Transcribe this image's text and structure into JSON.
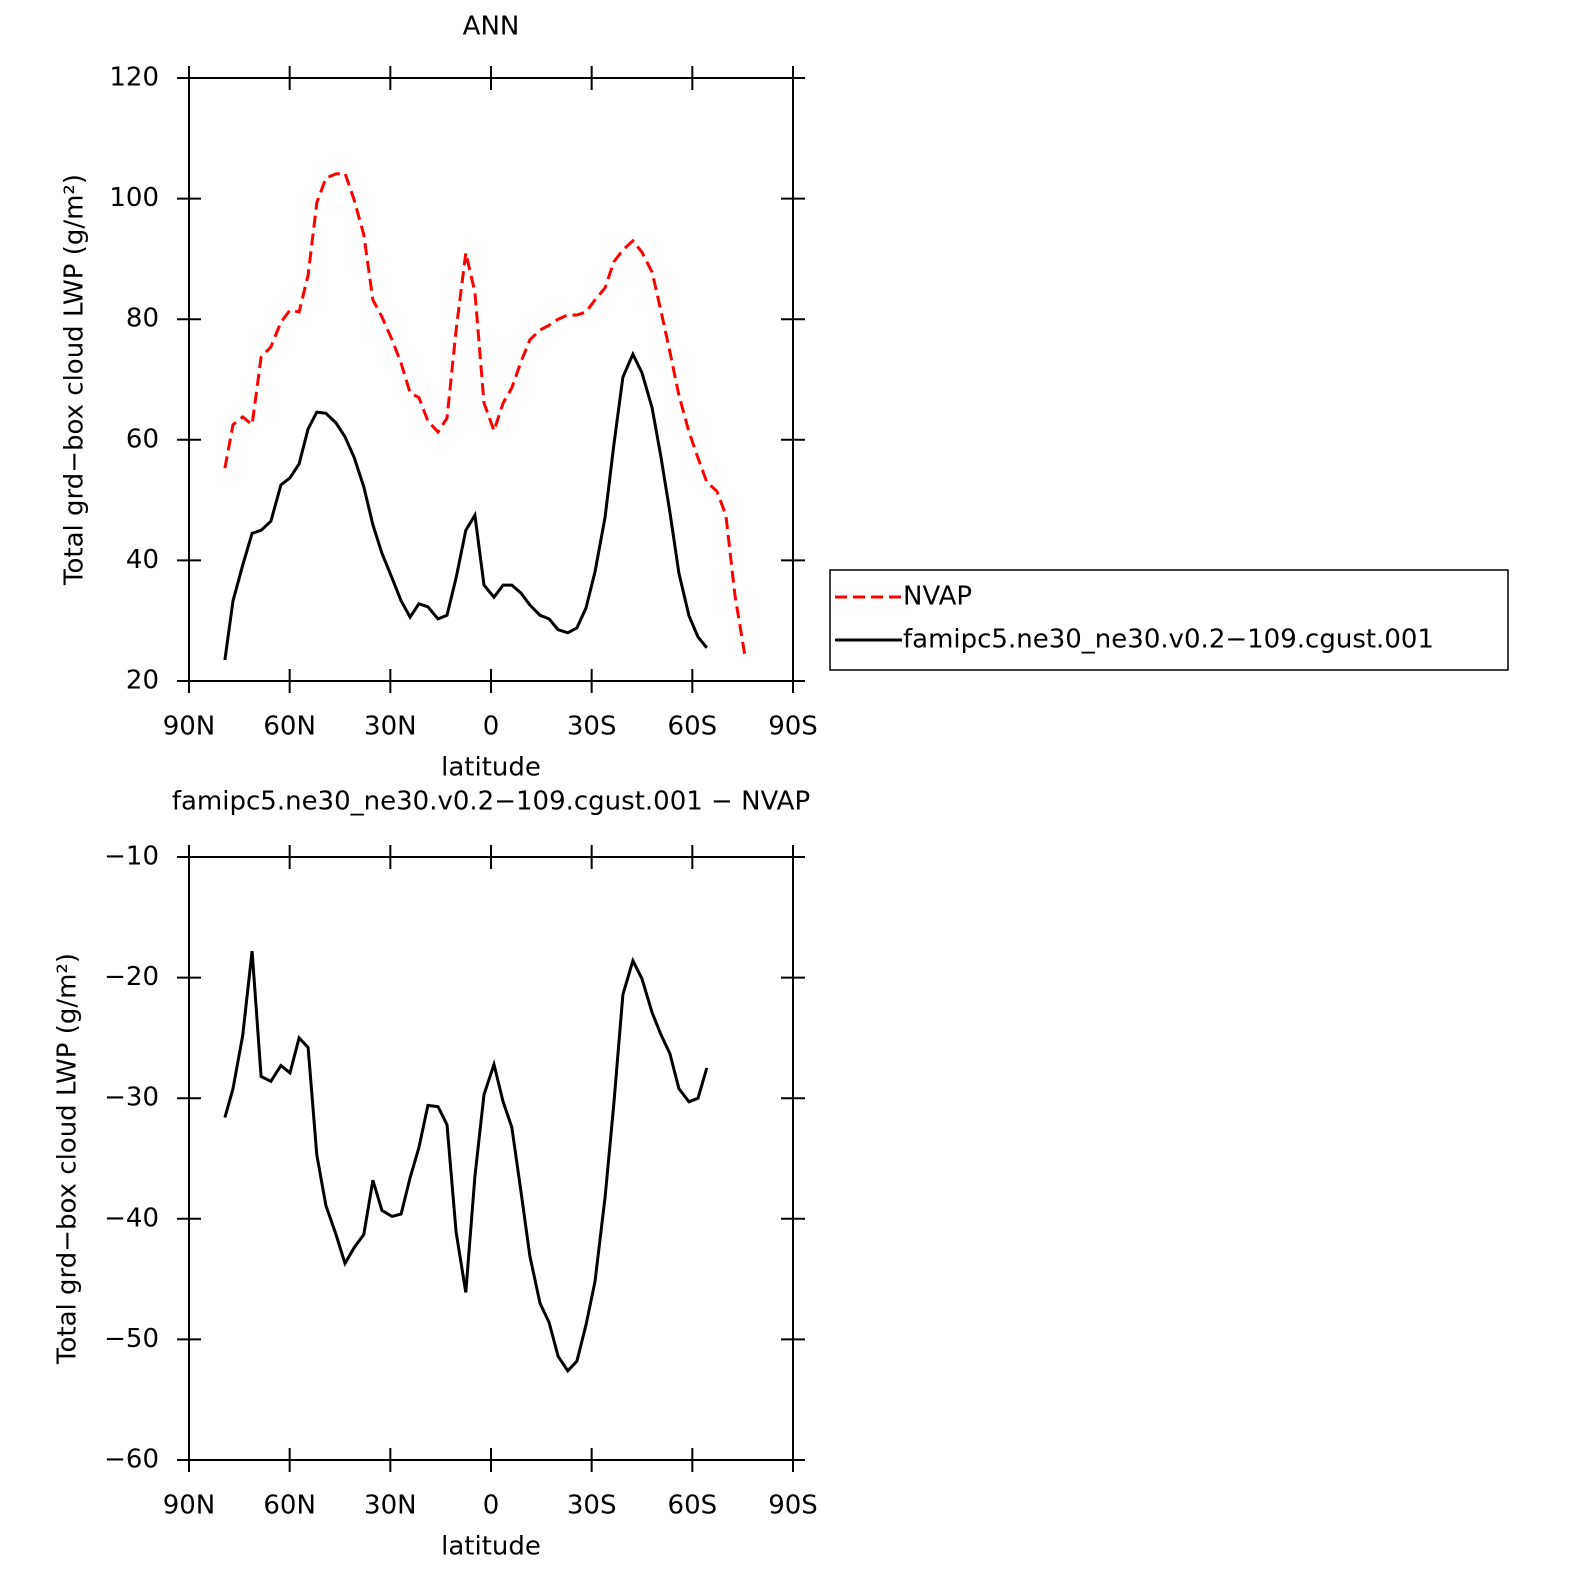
{
  "chart_data": [
    {
      "type": "line",
      "title": "ANN",
      "xlabel": "latitude",
      "ylabel": "Total grd−box cloud LWP (g/m²)",
      "xlim": [
        90,
        -90
      ],
      "xticks": [
        {
          "value": 90,
          "label": "90N"
        },
        {
          "value": 60,
          "label": "60N"
        },
        {
          "value": 30,
          "label": "30N"
        },
        0,
        {
          "value": -30,
          "label": "30S"
        },
        {
          "value": -60,
          "label": "60S"
        },
        {
          "value": -90,
          "label": "90S"
        }
      ],
      "ylim": [
        20,
        120
      ],
      "yticks": [
        20,
        40,
        60,
        80,
        100,
        120
      ],
      "x": [
        79.3,
        76.9,
        74,
        71.2,
        68.5,
        65.6,
        62.6,
        59.9,
        57.2,
        54.5,
        51.9,
        49.2,
        46.2,
        43.5,
        40.8,
        37.9,
        35.2,
        32.5,
        29.5,
        26.8,
        24.1,
        21.5,
        18.8,
        15.8,
        13.1,
        10.4,
        7.5,
        4.8,
        2.1,
        -0.9,
        -3.6,
        -6.2,
        -8.9,
        -11.6,
        -14.6,
        -17.3,
        -20,
        -22.9,
        -25.6,
        -28.3,
        -31,
        -34,
        -36.6,
        -39.3,
        -42.3,
        -45,
        -48,
        -50.6,
        -53.3,
        -56,
        -59,
        -61.7,
        -64.3,
        -67.3,
        -70,
        -72.7,
        -75.7
      ],
      "legend": "right",
      "series": [
        {
          "name": "NVAP",
          "color": "#ff0000",
          "dash": true,
          "values": [
            55.3,
            62.5,
            63.8,
            62.5,
            73.7,
            75.4,
            79.5,
            81.5,
            81.2,
            87.3,
            99.3,
            103.4,
            104.1,
            104.2,
            99.8,
            94,
            83.2,
            80.4,
            76.6,
            72.7,
            67.8,
            67,
            63.1,
            61.3,
            63.6,
            78.2,
            91,
            84.5,
            66.1,
            61.5,
            66.1,
            68.6,
            72.9,
            76.6,
            78.2,
            79,
            80,
            80.7,
            80.7,
            81.2,
            83.2,
            85.2,
            89.5,
            91.5,
            93,
            91.1,
            87.8,
            81.5,
            74.6,
            67.4,
            61.3,
            57,
            53,
            51.5,
            47.5,
            34.3,
            24.1
          ]
        },
        {
          "name": "famipc5.ne30_ne30.v0.2−109.cgust.001",
          "color": "#000000",
          "dash": false,
          "values": [
            23.5,
            33.3,
            39.2,
            44.5,
            45,
            46.5,
            52.5,
            53.7,
            56,
            61.8,
            64.6,
            64.4,
            62.8,
            60.5,
            57.1,
            52.2,
            45.9,
            41.2,
            37.1,
            33.3,
            30.6,
            32.8,
            32.3,
            30.3,
            30.9,
            37.1,
            45,
            47.5,
            35.9,
            33.9,
            35.9,
            35.9,
            34.6,
            32.6,
            30.9,
            30.3,
            28.5,
            28,
            28.8,
            32.1,
            38.1,
            47.2,
            59.1,
            70.4,
            74.2,
            71.1,
            65.3,
            57.3,
            48,
            37.9,
            30.8,
            27.3,
            25.5,
            null,
            null,
            null,
            null
          ]
        }
      ]
    },
    {
      "type": "line",
      "title": "famipc5.ne30_ne30.v0.2−109.cgust.001  −  NVAP",
      "xlabel": "latitude",
      "ylabel": "Total grd−box cloud LWP (g/m²)",
      "xlim": [
        90,
        -90
      ],
      "xticks": [
        {
          "value": 90,
          "label": "90N"
        },
        {
          "value": 60,
          "label": "60N"
        },
        {
          "value": 30,
          "label": "30N"
        },
        0,
        {
          "value": -30,
          "label": "30S"
        },
        {
          "value": -60,
          "label": "60S"
        },
        {
          "value": -90,
          "label": "90S"
        }
      ],
      "ylim": [
        -60,
        -10
      ],
      "yticks": [
        {
          "value": -60,
          "label": "−60"
        },
        {
          "value": -50,
          "label": "−50"
        },
        {
          "value": -40,
          "label": "−40"
        },
        {
          "value": -30,
          "label": "−30"
        },
        {
          "value": -20,
          "label": "−20"
        },
        {
          "value": -10,
          "label": "−10"
        }
      ],
      "x": [
        79.3,
        76.9,
        74,
        71.2,
        68.5,
        65.6,
        62.6,
        59.9,
        57.2,
        54.5,
        51.9,
        49.2,
        46.2,
        43.5,
        40.8,
        37.9,
        35.2,
        32.5,
        29.5,
        26.8,
        24.1,
        21.5,
        18.8,
        15.8,
        13.1,
        10.4,
        7.5,
        4.8,
        2.1,
        -0.9,
        -3.6,
        -6.2,
        -8.9,
        -11.6,
        -14.6,
        -17.3,
        -20,
        -22.9,
        -25.6,
        -28.3,
        -31,
        -34,
        -36.6,
        -39.3,
        -42.3,
        -45,
        -48,
        -50.6,
        -53.3,
        -56,
        -59,
        -61.7,
        -64.3
      ],
      "series": [
        {
          "color": "#000000",
          "dash": false,
          "values": [
            -31.6,
            -29.2,
            -24.8,
            -17.8,
            -28.2,
            -28.6,
            -27.3,
            -27.9,
            -25,
            -25.8,
            -34.7,
            -38.9,
            -41.3,
            -43.7,
            -42.4,
            -41.3,
            -36.8,
            -39.3,
            -39.8,
            -39.6,
            -36.6,
            -34.1,
            -30.6,
            -30.7,
            -32.2,
            -41.1,
            -46.1,
            -36.5,
            -29.7,
            -27.2,
            -30.3,
            -32.4,
            -37.7,
            -43.1,
            -47,
            -48.6,
            -51.4,
            -52.6,
            -51.8,
            -48.8,
            -45.2,
            -38.2,
            -30.5,
            -21.4,
            -18.6,
            -20.1,
            -22.9,
            -24.7,
            -26.3,
            -29.2,
            -30.3,
            -30,
            -27.5
          ]
        }
      ]
    }
  ]
}
